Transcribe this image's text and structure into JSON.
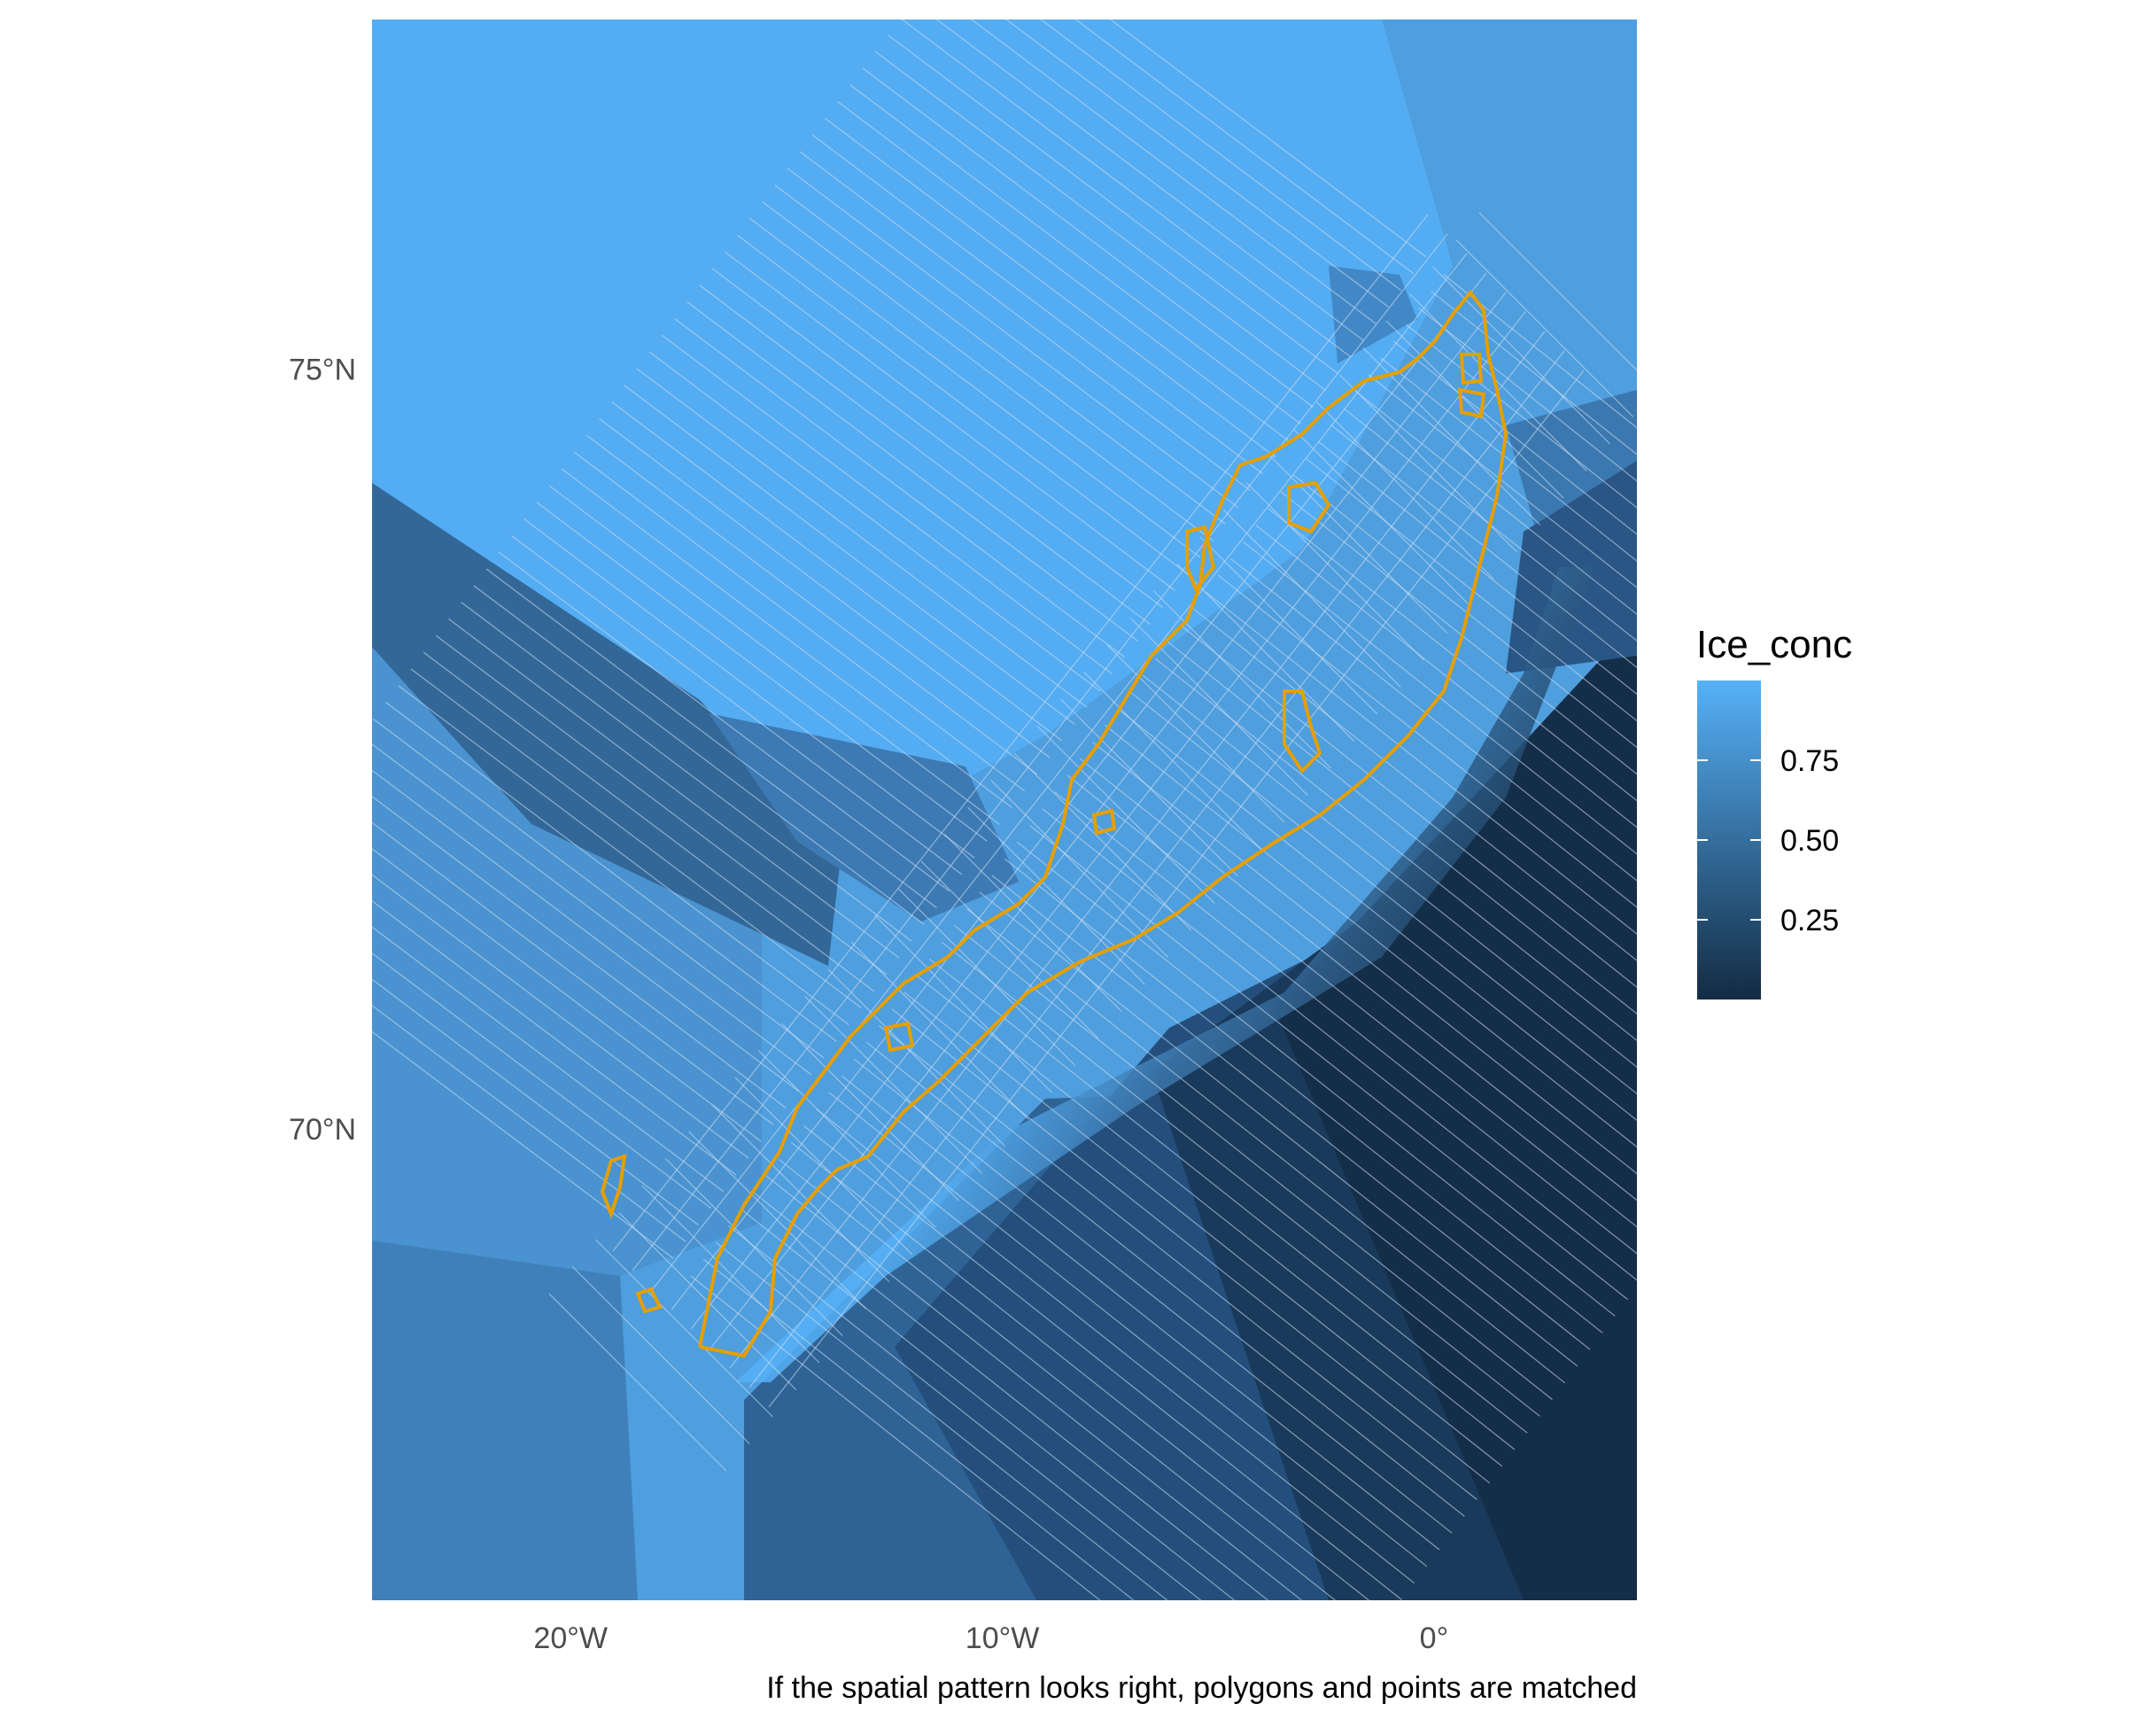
{
  "map": {
    "fill_variable": "Ice_conc",
    "caption": "If the spatial pattern looks right, polygons and points are matched",
    "axes": {
      "x_ticks": [
        {
          "lon": -20,
          "label": "20°W"
        },
        {
          "lon": -10,
          "label": "10°W"
        },
        {
          "lon": 0,
          "label": "0°"
        }
      ],
      "y_ticks": [
        {
          "lat": 75,
          "label": "75°N"
        },
        {
          "lat": 70,
          "label": "70°N"
        }
      ]
    },
    "extent": {
      "lon": [
        -24.6,
        4.7
      ],
      "lat": [
        66.9,
        77.3
      ]
    },
    "colors": {
      "high": "#56B1F7",
      "low": "#132B43",
      "outline": "#E69F00",
      "mesh_lines": "#C9DEF2"
    },
    "legend": {
      "title": "Ice_conc",
      "position": "right",
      "range": [
        0,
        1
      ],
      "ticks": [
        {
          "value": 0.75,
          "label": "0.75"
        },
        {
          "value": 0.5,
          "label": "0.50"
        },
        {
          "value": 0.25,
          "label": "0.25"
        }
      ]
    }
  }
}
